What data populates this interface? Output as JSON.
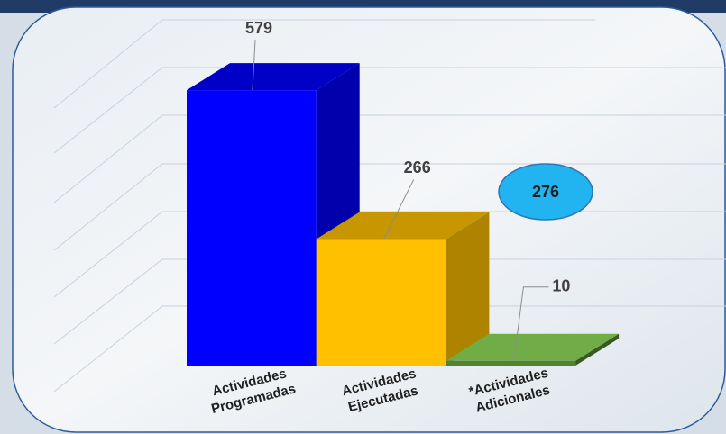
{
  "chart_data": {
    "type": "bar3d",
    "categories": [
      "Actividades Programadas",
      "Actividades Ejecutadas",
      "*Actividades Adicionales"
    ],
    "values": [
      579,
      266,
      10
    ],
    "colors": [
      "#0000ff",
      "#ffc000",
      "#548235"
    ],
    "ylim": [
      0,
      600
    ],
    "annotation": "276"
  }
}
